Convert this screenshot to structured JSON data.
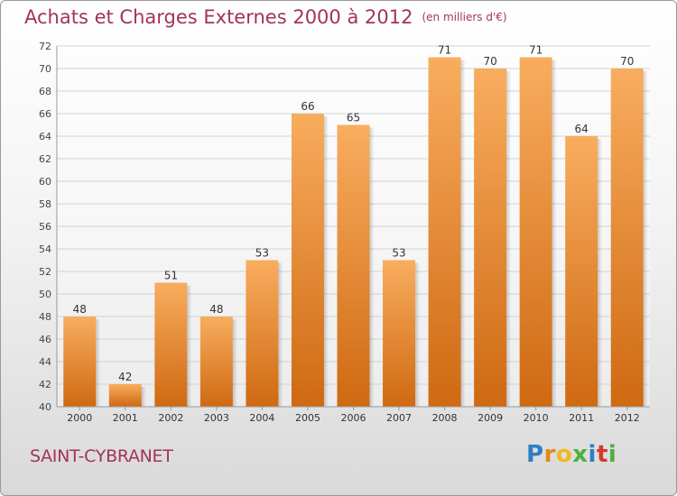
{
  "header": {
    "title": "Achats et Charges Externes 2000 à 2012",
    "unit": "(en milliers d'€)"
  },
  "footer": {
    "place": "SAINT-CYBRANET",
    "logo": "Proxiti"
  },
  "colors": {
    "title": "#a3335c",
    "bar_light": "#f6a95a",
    "bar_dark": "#d06a14"
  },
  "chart_data": {
    "type": "bar",
    "categories": [
      "2000",
      "2001",
      "2002",
      "2003",
      "2004",
      "2005",
      "2006",
      "2007",
      "2008",
      "2009",
      "2010",
      "2011",
      "2012"
    ],
    "values": [
      48,
      42,
      51,
      48,
      53,
      66,
      65,
      53,
      71,
      70,
      71,
      64,
      70
    ],
    "ylim": [
      40,
      72
    ],
    "yticks": [
      40,
      42,
      44,
      46,
      48,
      50,
      52,
      54,
      56,
      58,
      60,
      62,
      64,
      66,
      68,
      70,
      72
    ],
    "grid": true,
    "data_labels": true
  }
}
